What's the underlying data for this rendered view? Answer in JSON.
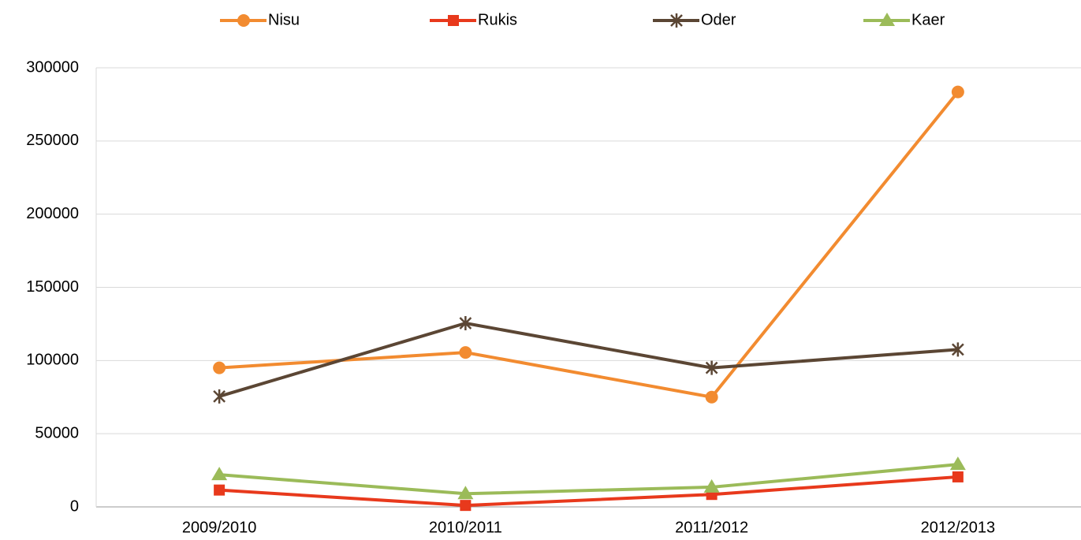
{
  "chart_data": {
    "type": "line",
    "categories": [
      "2009/2010",
      "2010/2011",
      "2011/2012",
      "2012/2013"
    ],
    "series": [
      {
        "name": "Nisu",
        "color": "#f28b30",
        "marker": "circle",
        "values": [
          95000,
          105500,
          75000,
          283500
        ]
      },
      {
        "name": "Rukis",
        "color": "#e8391c",
        "marker": "square",
        "values": [
          11500,
          1000,
          8500,
          20500
        ]
      },
      {
        "name": "Oder",
        "color": "#5b4634",
        "marker": "star",
        "values": [
          75500,
          125500,
          95000,
          107500
        ]
      },
      {
        "name": "Kaer",
        "color": "#9bbb59",
        "marker": "triangle",
        "values": [
          22000,
          9000,
          13500,
          29000
        ]
      }
    ],
    "ylim": [
      0,
      300000
    ],
    "yticks": [
      0,
      50000,
      100000,
      150000,
      200000,
      250000,
      300000
    ],
    "grid": true,
    "legend": "top"
  }
}
